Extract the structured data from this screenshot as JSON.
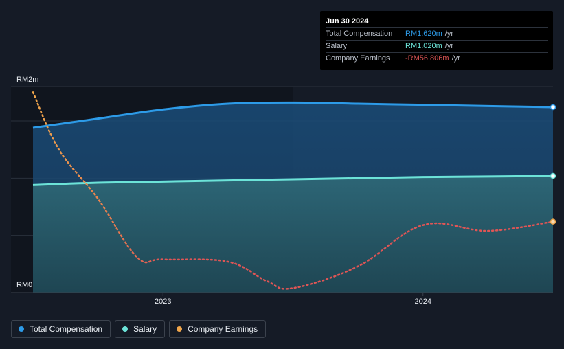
{
  "colors": {
    "total": "#2d9be8",
    "salary": "#6ce3d8",
    "earnings": "#e05555",
    "earnings_legend": "#f0a64b"
  },
  "tooltip": {
    "date": "Jun 30 2024",
    "rows": [
      {
        "label": "Total Compensation",
        "value": "RM1.620m",
        "unit": "/yr"
      },
      {
        "label": "Salary",
        "value": "RM1.020m",
        "unit": "/yr"
      },
      {
        "label": "Company Earnings",
        "value": "-RM56.806m",
        "unit": "/yr"
      }
    ]
  },
  "legend": [
    {
      "label": "Total Compensation"
    },
    {
      "label": "Salary"
    },
    {
      "label": "Company Earnings"
    }
  ],
  "chart_data": {
    "type": "area",
    "title": "",
    "y_tick_labels": [
      "RM2m",
      "RM0"
    ],
    "ylim": [
      0,
      1.8
    ],
    "x_tick_labels": [
      "2023",
      "2024"
    ],
    "x_ticks": [
      2023.0,
      2024.0
    ],
    "xlim": [
      2022.5,
      2024.5
    ],
    "shade_after": 2023.5,
    "series": [
      {
        "name": "Total Compensation",
        "unit": "RM m",
        "x": [
          2022.5,
          2022.75,
          2023.0,
          2023.25,
          2023.5,
          2023.75,
          2024.0,
          2024.25,
          2024.5
        ],
        "values": [
          1.44,
          1.52,
          1.6,
          1.65,
          1.66,
          1.65,
          1.64,
          1.63,
          1.62
        ]
      },
      {
        "name": "Salary",
        "unit": "RM m",
        "x": [
          2022.5,
          2022.75,
          2023.0,
          2023.25,
          2023.5,
          2023.75,
          2024.0,
          2024.25,
          2024.5
        ],
        "values": [
          0.94,
          0.96,
          0.97,
          0.98,
          0.99,
          1.0,
          1.01,
          1.015,
          1.02
        ]
      },
      {
        "name": "Company Earnings",
        "unit": "relative",
        "x": [
          2022.5,
          2022.6,
          2022.75,
          2022.9,
          2023.0,
          2023.25,
          2023.4,
          2023.5,
          2023.75,
          2024.0,
          2024.25,
          2024.5
        ],
        "values": [
          1.75,
          1.25,
          0.82,
          0.31,
          0.29,
          0.27,
          0.1,
          0.04,
          0.23,
          0.59,
          0.54,
          0.62
        ]
      }
    ]
  }
}
